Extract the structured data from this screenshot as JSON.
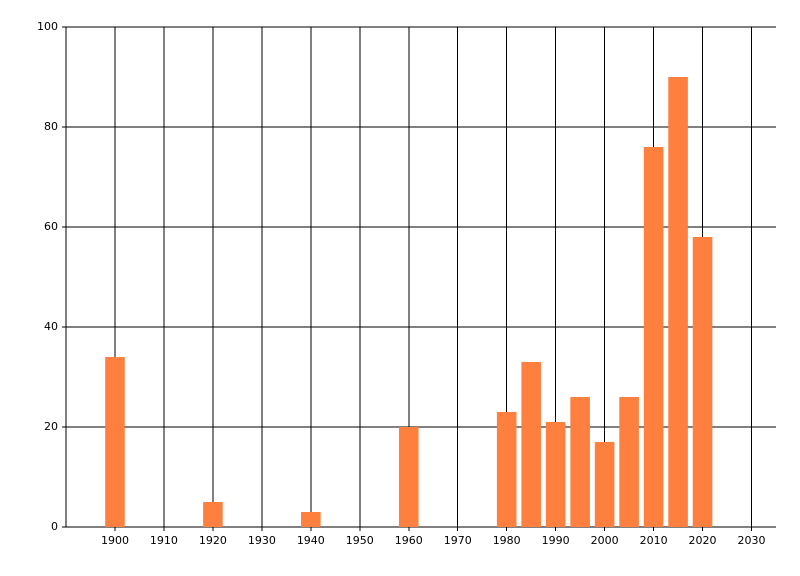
{
  "chart_data": {
    "type": "bar",
    "x": [
      1900,
      1920,
      1940,
      1960,
      1980,
      1985,
      1990,
      1995,
      2000,
      2005,
      2010,
      2015,
      2020
    ],
    "values": [
      34,
      5,
      3,
      20,
      23,
      33,
      21,
      26,
      17,
      26,
      76,
      90,
      58
    ],
    "color": "#ff7f3f",
    "xlim": [
      1890,
      2035
    ],
    "xticks": [
      1900,
      1910,
      1920,
      1930,
      1940,
      1950,
      1960,
      1970,
      1980,
      1990,
      2000,
      2010,
      2020,
      2030
    ],
    "ylim": [
      0,
      100
    ],
    "yticks": [
      0,
      20,
      40,
      60,
      80,
      100
    ],
    "grid": true
  }
}
